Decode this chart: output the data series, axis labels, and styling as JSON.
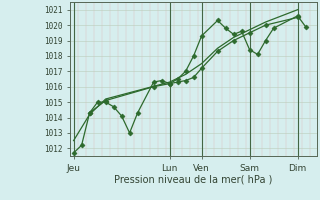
{
  "bg_color": "#d6eeee",
  "grid_color_major": "#bbccbb",
  "grid_color_minor": "#ccddcc",
  "line_color": "#2d6a2d",
  "marker_color": "#2d6a2d",
  "xlabel": "Pression niveau de la mer( hPa )",
  "ylim": [
    1011.5,
    1021.5
  ],
  "yticks": [
    1012,
    1013,
    1014,
    1015,
    1016,
    1017,
    1018,
    1019,
    1020,
    1021
  ],
  "xtick_labels": [
    "Jeu",
    "",
    "Lun",
    "Ven",
    "",
    "Sam",
    "",
    "Dim"
  ],
  "xtick_positions": [
    0,
    3.5,
    6,
    8,
    9.5,
    11,
    12.5,
    14
  ],
  "vline_positions": [
    0,
    6,
    8,
    11,
    14
  ],
  "series1_x": [
    0,
    0.5,
    1,
    1.5,
    2,
    2.5,
    3,
    3.5,
    4,
    5,
    5.5,
    6,
    6.5,
    7,
    7.5,
    8,
    9,
    9.5,
    10,
    10.5,
    11,
    11.5,
    12,
    12.5,
    14,
    14.5
  ],
  "series1": [
    1011.7,
    1012.2,
    1014.3,
    1015.0,
    1015.0,
    1014.7,
    1014.1,
    1013.0,
    1014.3,
    1016.3,
    1016.4,
    1016.2,
    1016.5,
    1017.0,
    1018.0,
    1019.3,
    1020.3,
    1019.8,
    1019.4,
    1019.6,
    1018.4,
    1018.1,
    1019.0,
    1019.8,
    1020.6,
    1019.9
  ],
  "series2_x": [
    1,
    2,
    5,
    6,
    6.5,
    7,
    7.5,
    8,
    9,
    10,
    11,
    12,
    14
  ],
  "series2": [
    1014.3,
    1015.1,
    1016.0,
    1016.2,
    1016.3,
    1016.4,
    1016.6,
    1017.2,
    1018.3,
    1019.0,
    1019.5,
    1020.0,
    1020.5
  ],
  "series3_x": [
    0,
    1,
    2,
    6,
    7,
    8,
    9,
    10,
    11,
    12,
    14
  ],
  "series3": [
    1012.5,
    1014.2,
    1015.2,
    1016.3,
    1016.8,
    1017.5,
    1018.5,
    1019.2,
    1019.7,
    1020.2,
    1021.0
  ],
  "xlim": [
    -0.2,
    15.2
  ]
}
